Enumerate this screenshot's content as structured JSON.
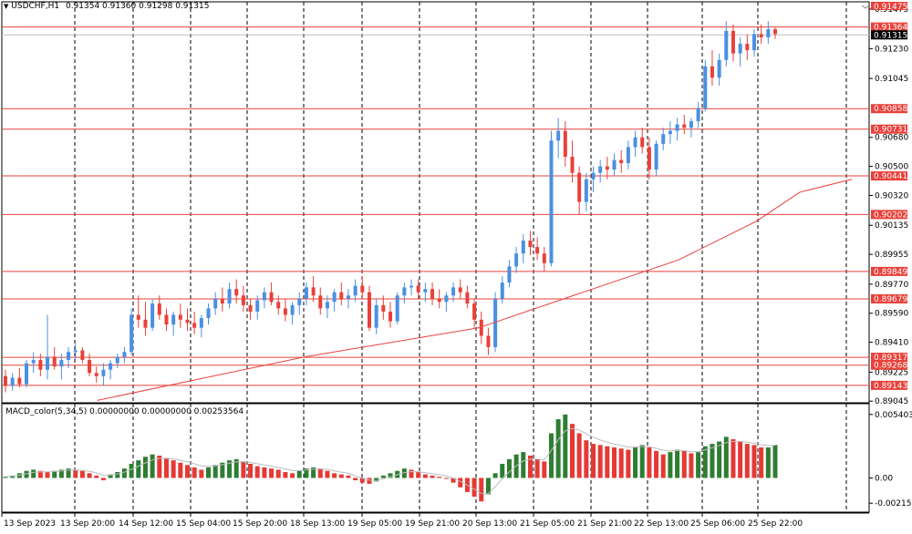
{
  "main_header": {
    "symbol": "USDCHF,H1",
    "ohlc": "0.91354 0.91360 0.91298 0.91315"
  },
  "macd_header": {
    "label": "MACD_color(5,34,5) 0.00000000 0.00000000 0.00253564"
  },
  "colors": {
    "bull": "#4a90e2",
    "bear": "#e8413a",
    "level_line": "#e8413a",
    "ma_line": "#e8413a",
    "macd_up": "#2e7d32",
    "macd_down": "#e53935",
    "grid": "#000000",
    "tag_red": "#e8413a",
    "tag_black": "#000000"
  },
  "price_axis": {
    "labels": [
      {
        "price": 0.91475,
        "text": "0.91475"
      },
      {
        "price": 0.9123,
        "text": "0.91230"
      },
      {
        "price": 0.91045,
        "text": "0.91045"
      },
      {
        "price": 0.9068,
        "text": "0.90680"
      },
      {
        "price": 0.905,
        "text": "0.90500"
      },
      {
        "price": 0.9032,
        "text": "0.90320"
      },
      {
        "price": 0.90135,
        "text": "0.90135"
      },
      {
        "price": 0.89955,
        "text": "0.89955"
      },
      {
        "price": 0.8977,
        "text": "0.89770"
      },
      {
        "price": 0.8959,
        "text": "0.89590"
      },
      {
        "price": 0.8941,
        "text": "0.89410"
      },
      {
        "price": 0.89225,
        "text": "0.89225"
      },
      {
        "price": 0.89045,
        "text": "0.89045"
      }
    ]
  },
  "levels": [
    {
      "price": 0.91364,
      "text": "0.91364",
      "style": "red"
    },
    {
      "price": 0.91315,
      "text": "0.91315",
      "style": "black"
    },
    {
      "price": 0.90858,
      "text": "0.90858",
      "style": "red"
    },
    {
      "price": 0.90731,
      "text": "0.90731",
      "style": "red"
    },
    {
      "price": 0.90441,
      "text": "0.90441",
      "style": "red"
    },
    {
      "price": 0.90202,
      "text": "0.90202",
      "style": "red"
    },
    {
      "price": 0.89849,
      "text": "0.89849",
      "style": "red"
    },
    {
      "price": 0.89679,
      "text": "0.89679",
      "style": "red"
    },
    {
      "price": 0.89317,
      "text": "0.89317",
      "style": "red"
    },
    {
      "price": 0.89268,
      "text": "0.89268",
      "style": "red"
    },
    {
      "price": 0.89143,
      "text": "0.89143",
      "style": "red"
    }
  ],
  "top_tag": {
    "text": "0.91475"
  },
  "macd_axis": {
    "labels": [
      {
        "value": 0.0054035,
        "text": "0.0054035"
      },
      {
        "value": 0.0,
        "text": "0.00"
      },
      {
        "value": -0.00215,
        "text": "-0.00215"
      }
    ]
  },
  "time_axis": {
    "labels": [
      "13 Sep 2023",
      "13 Sep 20:00",
      "14 Sep 12:00",
      "15 Sep 04:00",
      "15 Sep 20:00",
      "18 Sep 13:00",
      "19 Sep 05:00",
      "19 Sep 21:00",
      "20 Sep 13:00",
      "21 Sep 05:00",
      "21 Sep 21:00",
      "22 Sep 13:00",
      "25 Sep 06:00",
      "25 Sep 22:00"
    ]
  },
  "chart_data": {
    "type": "candlestick",
    "symbol": "USDCHF,H1",
    "ylim": [
      0.89,
      0.915
    ],
    "macd_ylim": [
      -0.0026,
      0.0056
    ],
    "candles": [
      [
        0.892,
        0.8924,
        0.891,
        0.8914
      ],
      [
        0.8914,
        0.8922,
        0.8911,
        0.8919
      ],
      [
        0.8919,
        0.8925,
        0.8913,
        0.8915
      ],
      [
        0.8915,
        0.893,
        0.8913,
        0.8928
      ],
      [
        0.8928,
        0.8935,
        0.8922,
        0.893
      ],
      [
        0.893,
        0.8934,
        0.892,
        0.8924
      ],
      [
        0.8924,
        0.8958,
        0.8918,
        0.8932
      ],
      [
        0.8932,
        0.8938,
        0.8924,
        0.8926
      ],
      [
        0.8926,
        0.8934,
        0.8918,
        0.893
      ],
      [
        0.893,
        0.8938,
        0.8925,
        0.8935
      ],
      [
        0.8935,
        0.894,
        0.893,
        0.8936
      ],
      [
        0.8936,
        0.8938,
        0.8928,
        0.893
      ],
      [
        0.893,
        0.8934,
        0.892,
        0.8922
      ],
      [
        0.8922,
        0.8926,
        0.8916,
        0.892
      ],
      [
        0.892,
        0.8928,
        0.8914,
        0.8924
      ],
      [
        0.8924,
        0.893,
        0.8918,
        0.8928
      ],
      [
        0.8928,
        0.8934,
        0.8925,
        0.8932
      ],
      [
        0.8932,
        0.8938,
        0.8928,
        0.8935
      ],
      [
        0.8935,
        0.8962,
        0.8933,
        0.8958
      ],
      [
        0.8958,
        0.897,
        0.895,
        0.8955
      ],
      [
        0.8955,
        0.8966,
        0.8945,
        0.895
      ],
      [
        0.895,
        0.8968,
        0.8948,
        0.8965
      ],
      [
        0.8965,
        0.897,
        0.8955,
        0.8958
      ],
      [
        0.8958,
        0.8962,
        0.8948,
        0.8952
      ],
      [
        0.8952,
        0.896,
        0.8945,
        0.8958
      ],
      [
        0.8958,
        0.8965,
        0.895,
        0.8955
      ],
      [
        0.8955,
        0.8962,
        0.8948,
        0.8953
      ],
      [
        0.8953,
        0.896,
        0.8946,
        0.895
      ],
      [
        0.895,
        0.8958,
        0.8944,
        0.8956
      ],
      [
        0.8956,
        0.8965,
        0.8952,
        0.8962
      ],
      [
        0.8962,
        0.8972,
        0.8958,
        0.8968
      ],
      [
        0.8968,
        0.8975,
        0.896,
        0.8965
      ],
      [
        0.8965,
        0.8978,
        0.8962,
        0.8974
      ],
      [
        0.8974,
        0.898,
        0.8965,
        0.897
      ],
      [
        0.897,
        0.8976,
        0.896,
        0.8964
      ],
      [
        0.8964,
        0.8968,
        0.8955,
        0.896
      ],
      [
        0.896,
        0.897,
        0.8955,
        0.8967
      ],
      [
        0.8967,
        0.8975,
        0.8962,
        0.8972
      ],
      [
        0.8972,
        0.8978,
        0.8964,
        0.8966
      ],
      [
        0.8966,
        0.897,
        0.8958,
        0.8962
      ],
      [
        0.8962,
        0.8968,
        0.8954,
        0.8958
      ],
      [
        0.8958,
        0.8966,
        0.8952,
        0.8964
      ],
      [
        0.8964,
        0.8972,
        0.8958,
        0.8968
      ],
      [
        0.8968,
        0.8978,
        0.8964,
        0.8975
      ],
      [
        0.8975,
        0.8982,
        0.8966,
        0.897
      ],
      [
        0.897,
        0.8975,
        0.8958,
        0.8962
      ],
      [
        0.8962,
        0.897,
        0.8956,
        0.8966
      ],
      [
        0.8966,
        0.8974,
        0.896,
        0.8972
      ],
      [
        0.8972,
        0.8978,
        0.8964,
        0.8968
      ],
      [
        0.8968,
        0.8974,
        0.8962,
        0.897
      ],
      [
        0.897,
        0.898,
        0.8966,
        0.8976
      ],
      [
        0.8976,
        0.8982,
        0.8968,
        0.8972
      ],
      [
        0.8972,
        0.8976,
        0.8948,
        0.895
      ],
      [
        0.895,
        0.8968,
        0.8946,
        0.8964
      ],
      [
        0.8964,
        0.897,
        0.8955,
        0.896
      ],
      [
        0.896,
        0.8966,
        0.895,
        0.8954
      ],
      [
        0.8954,
        0.8972,
        0.8952,
        0.897
      ],
      [
        0.897,
        0.8978,
        0.8965,
        0.8975
      ],
      [
        0.8975,
        0.898,
        0.897,
        0.8976
      ],
      [
        0.8976,
        0.898,
        0.8968,
        0.8972
      ],
      [
        0.8972,
        0.8978,
        0.8966,
        0.8974
      ],
      [
        0.8974,
        0.8978,
        0.8964,
        0.8968
      ],
      [
        0.8968,
        0.8974,
        0.8962,
        0.8966
      ],
      [
        0.8966,
        0.8972,
        0.896,
        0.897
      ],
      [
        0.897,
        0.8978,
        0.8966,
        0.8975
      ],
      [
        0.8975,
        0.898,
        0.8968,
        0.8972
      ],
      [
        0.8972,
        0.8976,
        0.8962,
        0.8965
      ],
      [
        0.8965,
        0.8968,
        0.895,
        0.8955
      ],
      [
        0.8955,
        0.896,
        0.894,
        0.8945
      ],
      [
        0.8945,
        0.895,
        0.8933,
        0.8938
      ],
      [
        0.8938,
        0.8972,
        0.8935,
        0.8968
      ],
      [
        0.8968,
        0.8982,
        0.8965,
        0.8978
      ],
      [
        0.8978,
        0.8992,
        0.8975,
        0.8988
      ],
      [
        0.8988,
        0.9,
        0.8984,
        0.8996
      ],
      [
        0.8996,
        0.9008,
        0.899,
        0.9004
      ],
      [
        0.9004,
        0.901,
        0.8995,
        0.9
      ],
      [
        0.9,
        0.9006,
        0.8992,
        0.8996
      ],
      [
        0.8996,
        0.9,
        0.8985,
        0.899
      ],
      [
        0.899,
        0.9072,
        0.8988,
        0.9066
      ],
      [
        0.9066,
        0.908,
        0.9055,
        0.9072
      ],
      [
        0.9072,
        0.9078,
        0.905,
        0.9056
      ],
      [
        0.9056,
        0.9066,
        0.904,
        0.9046
      ],
      [
        0.9046,
        0.905,
        0.902,
        0.9028
      ],
      [
        0.9028,
        0.9046,
        0.9022,
        0.9042
      ],
      [
        0.9042,
        0.905,
        0.9034,
        0.9046
      ],
      [
        0.9046,
        0.9054,
        0.904,
        0.905
      ],
      [
        0.905,
        0.9056,
        0.9042,
        0.9048
      ],
      [
        0.9048,
        0.9058,
        0.9044,
        0.9054
      ],
      [
        0.9054,
        0.906,
        0.9046,
        0.9052
      ],
      [
        0.9052,
        0.9066,
        0.9048,
        0.9062
      ],
      [
        0.9062,
        0.9072,
        0.9056,
        0.9068
      ],
      [
        0.9068,
        0.9074,
        0.9058,
        0.9062
      ],
      [
        0.9062,
        0.9068,
        0.9042,
        0.9048
      ],
      [
        0.9048,
        0.9066,
        0.9044,
        0.9064
      ],
      [
        0.9064,
        0.9074,
        0.906,
        0.907
      ],
      [
        0.907,
        0.9078,
        0.9064,
        0.9072
      ],
      [
        0.9072,
        0.908,
        0.9066,
        0.9076
      ],
      [
        0.9076,
        0.9082,
        0.907,
        0.9074
      ],
      [
        0.9074,
        0.908,
        0.9068,
        0.9078
      ],
      [
        0.9078,
        0.909,
        0.9074,
        0.9086
      ],
      [
        0.9086,
        0.9116,
        0.9084,
        0.9112
      ],
      [
        0.9112,
        0.9122,
        0.91,
        0.9105
      ],
      [
        0.9105,
        0.912,
        0.91,
        0.9116
      ],
      [
        0.9116,
        0.914,
        0.9112,
        0.9134
      ],
      [
        0.9134,
        0.9138,
        0.9115,
        0.912
      ],
      [
        0.912,
        0.913,
        0.9112,
        0.9126
      ],
      [
        0.9126,
        0.9132,
        0.9116,
        0.9122
      ],
      [
        0.9122,
        0.9135,
        0.9118,
        0.9132
      ],
      [
        0.9132,
        0.9138,
        0.9126,
        0.913
      ],
      [
        0.913,
        0.914,
        0.9126,
        0.9135
      ],
      [
        0.9135,
        0.9136,
        0.9129,
        0.9132
      ]
    ],
    "ma_points": [
      [
        0.11,
        0.8905
      ],
      [
        0.35,
        0.8932
      ],
      [
        0.55,
        0.895
      ],
      [
        0.67,
        0.8972
      ],
      [
        0.78,
        0.8992
      ],
      [
        0.87,
        0.9016
      ],
      [
        0.92,
        0.9034
      ],
      [
        0.98,
        0.9042
      ]
    ],
    "macd_values": [
      0.0001,
      0.0002,
      0.0004,
      0.0006,
      0.0007,
      0.0006,
      0.0005,
      0.0006,
      0.0007,
      0.0008,
      0.0007,
      0.0006,
      0.0004,
      0.0002,
      -0.0002,
      0.0003,
      0.0005,
      0.0008,
      0.0012,
      0.0015,
      0.0018,
      0.002,
      0.0019,
      0.0017,
      0.0015,
      0.0013,
      0.0011,
      0.0009,
      0.0007,
      0.0009,
      0.0011,
      0.0013,
      0.0015,
      0.0016,
      0.0014,
      0.0012,
      0.001,
      0.0009,
      0.0008,
      0.0007,
      0.0005,
      0.0004,
      0.0006,
      0.0008,
      0.0009,
      0.0008,
      0.0006,
      0.0004,
      0.0003,
      0.0002,
      -0.0002,
      -0.0004,
      -0.0005,
      -0.0003,
      0.0002,
      0.0004,
      0.0006,
      0.0008,
      0.0007,
      0.0005,
      0.0003,
      0.0002,
      0.0001,
      0.0,
      -0.0004,
      -0.0008,
      -0.0012,
      -0.0016,
      -0.002,
      -0.0014,
      0.0004,
      0.0012,
      0.0016,
      0.002,
      0.0022,
      0.0019,
      0.0016,
      0.0014,
      0.0038,
      0.005,
      0.0054,
      0.0046,
      0.0038,
      0.0032,
      0.0029,
      0.0028,
      0.0027,
      0.0026,
      0.0025,
      0.0024,
      0.0026,
      0.0028,
      0.0026,
      0.0023,
      0.002,
      0.0022,
      0.0024,
      0.0023,
      0.0021,
      0.0022,
      0.0027,
      0.0029,
      0.0031,
      0.0035,
      0.0033,
      0.0031,
      0.0029,
      0.0028,
      0.0026,
      0.0026,
      0.0028
    ]
  }
}
